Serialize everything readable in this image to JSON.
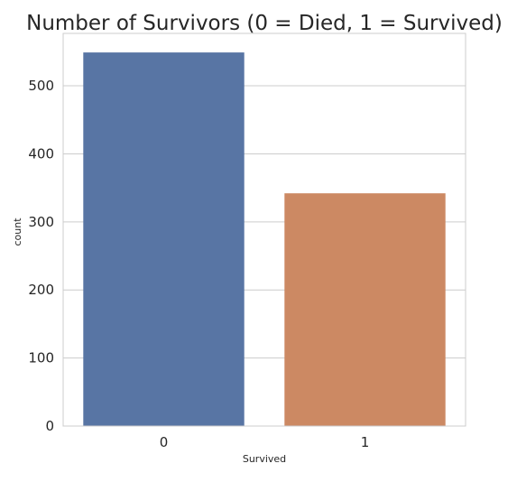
{
  "chart_data": {
    "type": "bar",
    "title": "Number of Survivors (0 = Died, 1 = Survived)",
    "xlabel": "Survived",
    "ylabel": "count",
    "categories": [
      "0",
      "1"
    ],
    "values": [
      549,
      342
    ],
    "colors": [
      "#5875a4",
      "#cc8963"
    ],
    "ylim": [
      0,
      577
    ],
    "yticks": [
      0,
      100,
      200,
      300,
      400,
      500
    ],
    "grid": "y"
  }
}
